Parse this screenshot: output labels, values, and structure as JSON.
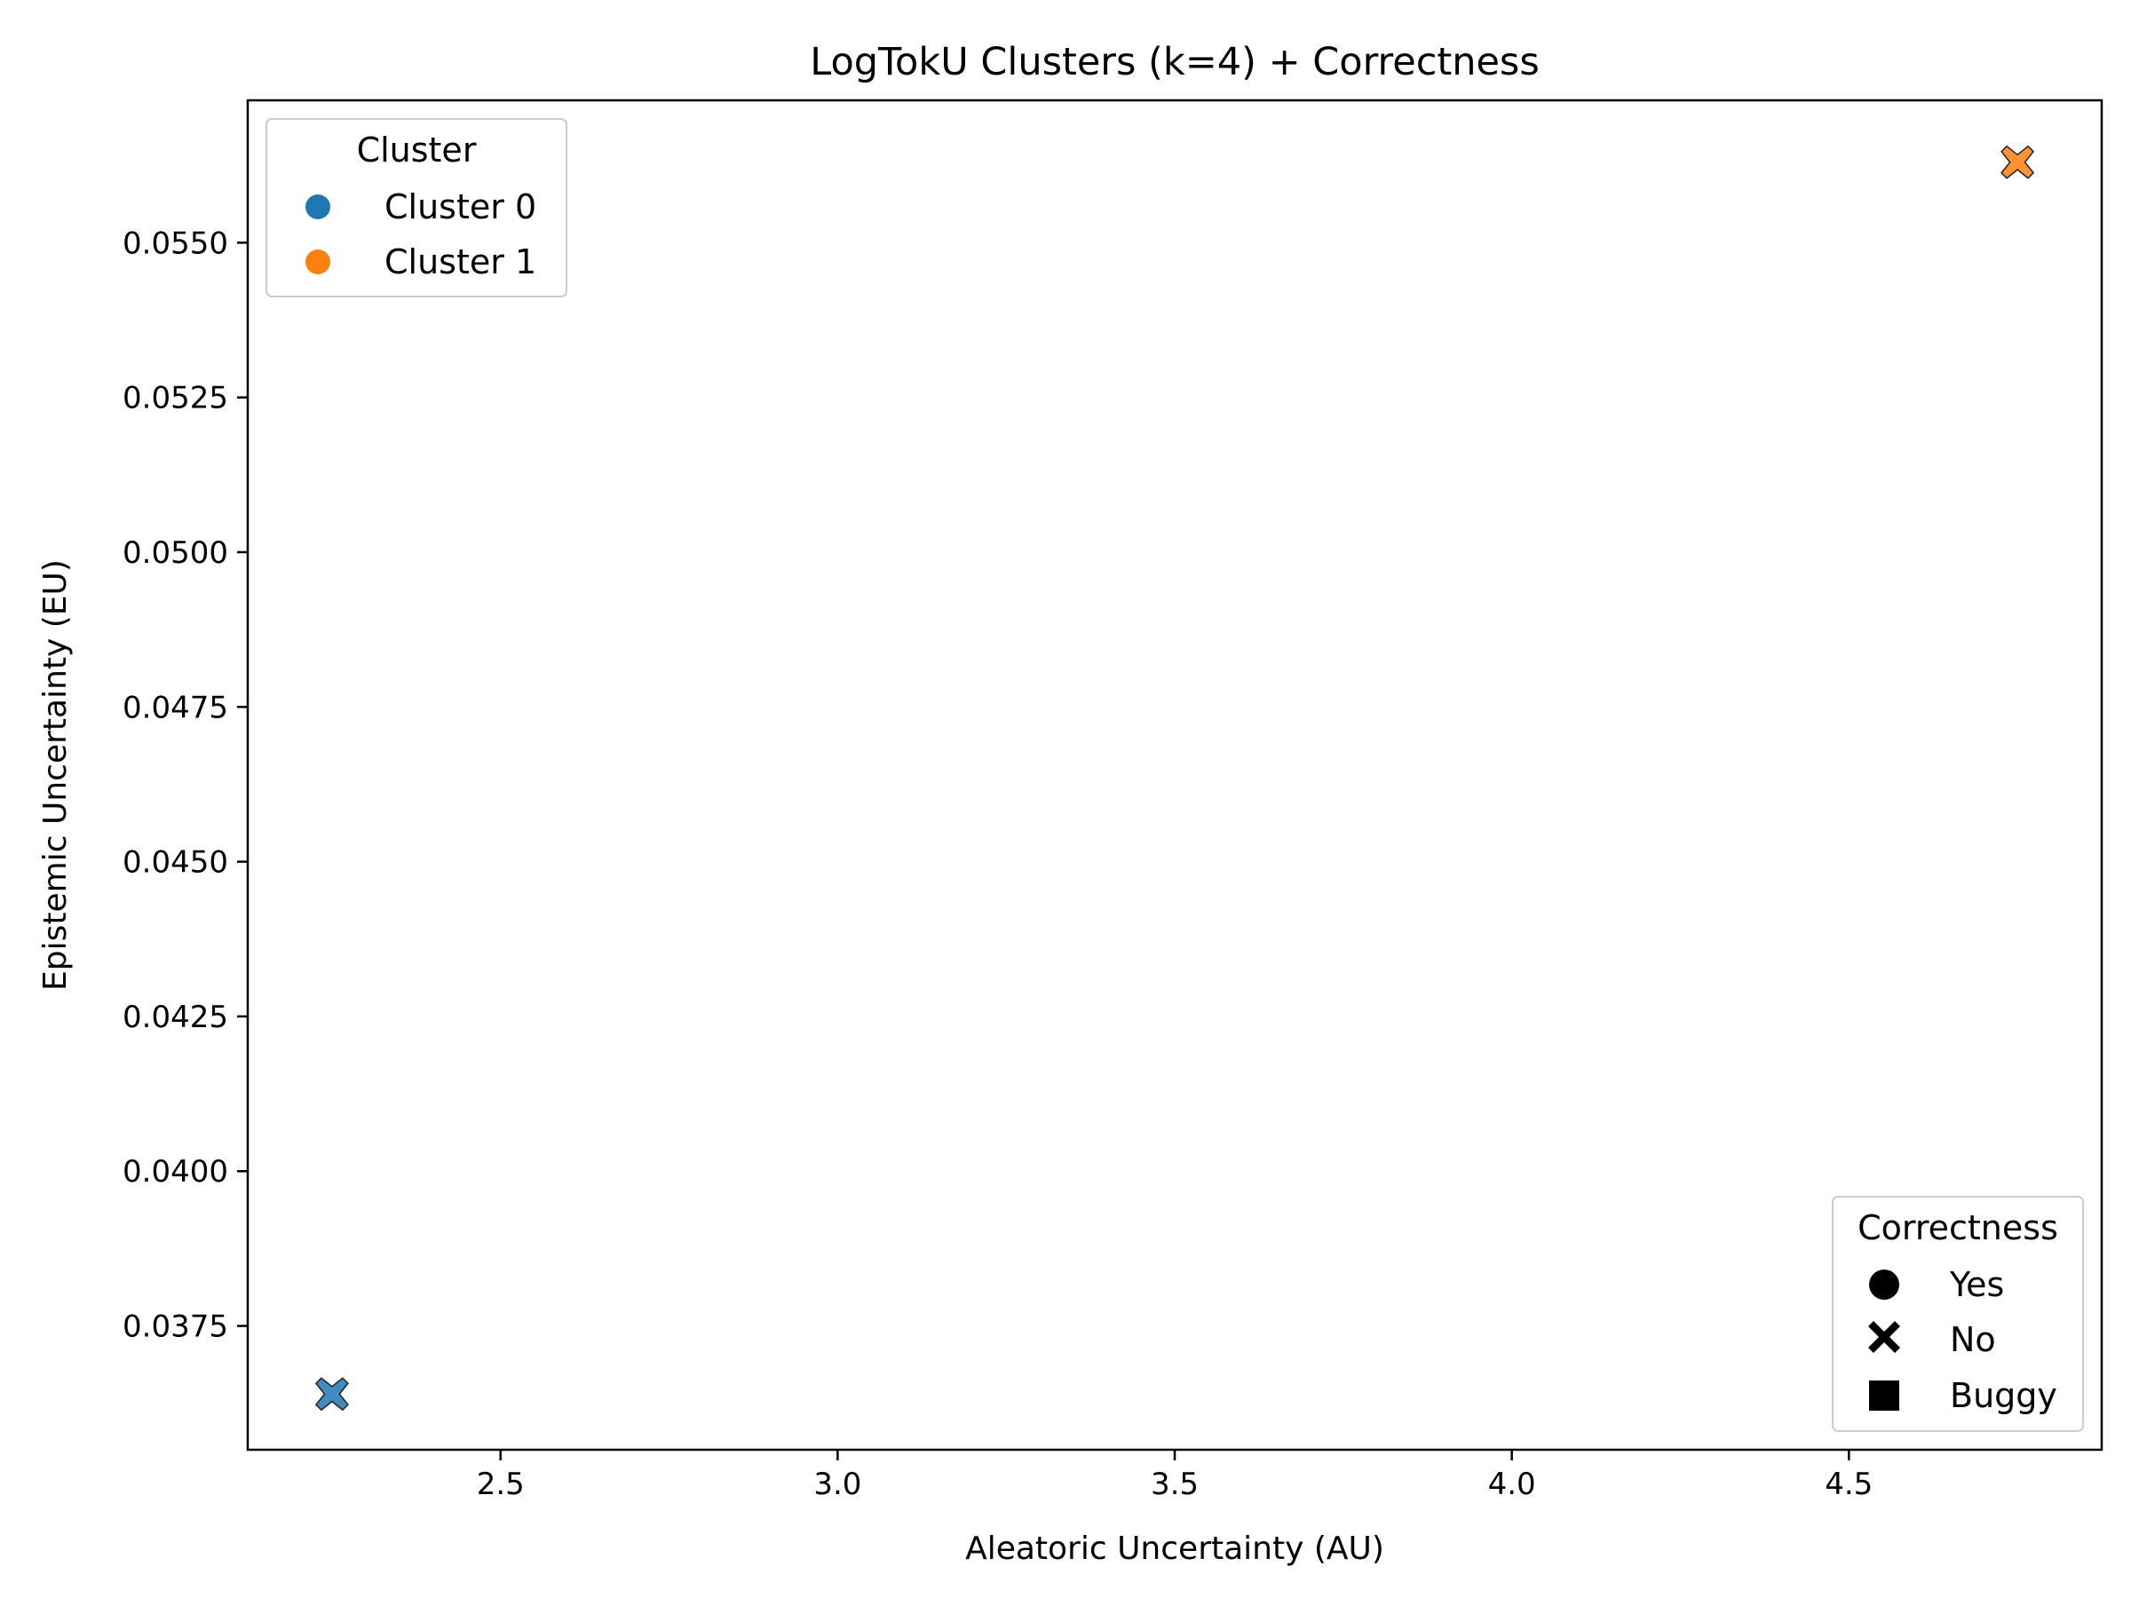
{
  "chart_data": {
    "type": "scatter",
    "title": "LogTokU Clusters (k=4) + Correctness",
    "xlabel": "Aleatoric Uncertainty (AU)",
    "ylabel": "Epistemic Uncertainty (EU)",
    "xlim": [
      2.125,
      4.875
    ],
    "ylim": [
      0.0355,
      0.0573
    ],
    "xticks": [
      2.5,
      3.0,
      3.5,
      4.0,
      4.5
    ],
    "xtick_labels": [
      "2.5",
      "3.0",
      "3.5",
      "4.0",
      "4.5"
    ],
    "yticks": [
      0.0375,
      0.04,
      0.0425,
      0.045,
      0.0475,
      0.05,
      0.0525,
      0.055
    ],
    "ytick_labels": [
      "0.0375",
      "0.0400",
      "0.0425",
      "0.0450",
      "0.0475",
      "0.0500",
      "0.0525",
      "0.0550"
    ],
    "grid": false,
    "points": [
      {
        "x": 2.25,
        "y": 0.0364,
        "cluster": "Cluster 0",
        "correctness": "No",
        "color": "#1f77b4"
      },
      {
        "x": 4.75,
        "y": 0.0563,
        "cluster": "Cluster 1",
        "correctness": "No",
        "color": "#ff7f0e"
      }
    ],
    "legends": [
      {
        "title": "Cluster",
        "placement": "top-left",
        "entries": [
          {
            "label": "Cluster 0",
            "marker": "circle",
            "color": "#1f77b4"
          },
          {
            "label": "Cluster 1",
            "marker": "circle",
            "color": "#ff7f0e"
          }
        ]
      },
      {
        "title": "Correctness",
        "placement": "bottom-right",
        "entries": [
          {
            "label": "Yes",
            "marker": "circle",
            "color": "#000000"
          },
          {
            "label": "No",
            "marker": "x",
            "color": "#000000"
          },
          {
            "label": "Buggy",
            "marker": "square",
            "color": "#000000"
          }
        ]
      }
    ]
  }
}
